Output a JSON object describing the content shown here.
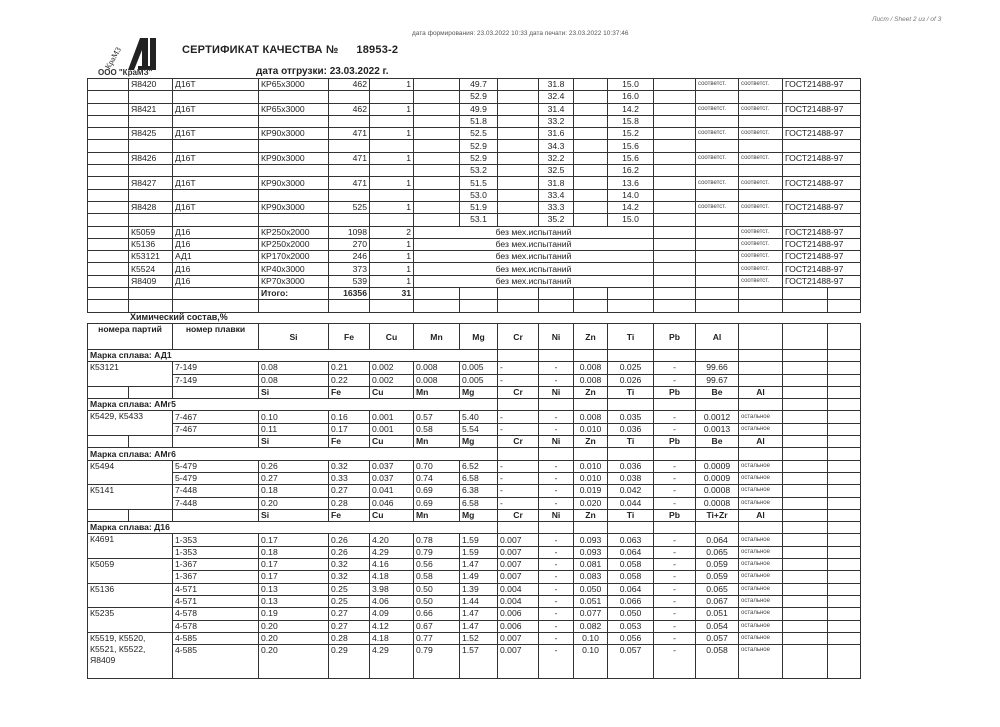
{
  "header": {
    "meta": "дата формирования: 23.03.2022 10:33  дата печати: 23.03.2022 10:37:46",
    "sheet": "Лист / Sheet  2 из / of  3",
    "logo_text": "КраМЗ",
    "company": "ООО \"КраМЗ\"",
    "title": "СЕРТИФИКАТ КАЧЕСТВА №",
    "cert_no": "18953-2",
    "ship_label": "дата отгрузки:",
    "ship_date": "23.03.2022 г."
  },
  "mech": {
    "lots": [
      {
        "party": "Я8420",
        "alloy": "Д16Т",
        "size": "КР65х3000",
        "weight": "462",
        "qty": "1",
        "tests": [
          [
            "49.7",
            "31.8",
            "15.0"
          ],
          [
            "52.9",
            "32.4",
            "16.0"
          ]
        ],
        "c1": "соответст.",
        "c2": "соответст.",
        "std": "ГОСТ21488-97"
      },
      {
        "party": "Я8421",
        "alloy": "Д16Т",
        "size": "КР65х3000",
        "weight": "462",
        "qty": "1",
        "tests": [
          [
            "49.9",
            "31.4",
            "14.2"
          ],
          [
            "51.8",
            "33.2",
            "15.8"
          ]
        ],
        "c1": "соответст.",
        "c2": "соответст.",
        "std": "ГОСТ21488-97"
      },
      {
        "party": "Я8425",
        "alloy": "Д16Т",
        "size": "КР90х3000",
        "weight": "471",
        "qty": "1",
        "tests": [
          [
            "52.5",
            "31.6",
            "15.2"
          ],
          [
            "52.9",
            "34.3",
            "15.6"
          ]
        ],
        "c1": "соответст.",
        "c2": "соответст.",
        "std": "ГОСТ21488-97"
      },
      {
        "party": "Я8426",
        "alloy": "Д16Т",
        "size": "КР90х3000",
        "weight": "471",
        "qty": "1",
        "tests": [
          [
            "52.9",
            "32.2",
            "15.6"
          ],
          [
            "53.2",
            "32.5",
            "16.2"
          ]
        ],
        "c1": "соответст.",
        "c2": "соответст.",
        "std": "ГОСТ21488-97"
      },
      {
        "party": "Я8427",
        "alloy": "Д16Т",
        "size": "КР90х3000",
        "weight": "471",
        "qty": "1",
        "tests": [
          [
            "51.5",
            "31.8",
            "13.6"
          ],
          [
            "53.0",
            "33.4",
            "14.0"
          ]
        ],
        "c1": "соответст.",
        "c2": "соответст.",
        "std": "ГОСТ21488-97"
      },
      {
        "party": "Я8428",
        "alloy": "Д16Т",
        "size": "КР90х3000",
        "weight": "525",
        "qty": "1",
        "tests": [
          [
            "51.9",
            "33.3",
            "14.2"
          ],
          [
            "53.1",
            "35.2",
            "15.0"
          ]
        ],
        "c1": "соответст.",
        "c2": "соответст.",
        "std": "ГОСТ21488-97"
      }
    ],
    "untested": [
      {
        "party": "К5059",
        "alloy": "Д16",
        "size": "КР250х2000",
        "weight": "1098",
        "qty": "2",
        "note": "без мех.испытаний",
        "c2": "соответст.",
        "std": "ГОСТ21488-97"
      },
      {
        "party": "К5136",
        "alloy": "Д16",
        "size": "КР250х2000",
        "weight": "270",
        "qty": "1",
        "note": "без мех.испытаний",
        "c2": "соответст.",
        "std": "ГОСТ21488-97"
      },
      {
        "party": "К53121",
        "alloy": "АД1",
        "size": "КР170х2000",
        "weight": "246",
        "qty": "1",
        "note": "без мех.испытаний",
        "c2": "соответст.",
        "std": "ГОСТ21488-97"
      },
      {
        "party": "К5524",
        "alloy": "Д16",
        "size": "КР40х3000",
        "weight": "373",
        "qty": "1",
        "note": "без мех.испытаний",
        "c2": "соответст.",
        "std": "ГОСТ21488-97"
      },
      {
        "party": "Я8409",
        "alloy": "Д16",
        "size": "КР70х3000",
        "weight": "539",
        "qty": "1",
        "note": "без мех.испытаний",
        "c2": "соответст.",
        "std": "ГОСТ21488-97"
      }
    ],
    "total": {
      "label": "Итого:",
      "weight": "16356",
      "qty": "31"
    }
  },
  "chem": {
    "caption": "Химический состав,%",
    "headers": [
      "номера партий",
      "номер плавки",
      "Si",
      "Fe",
      "Cu",
      "Mn",
      "Mg",
      "Cr",
      "Ni",
      "Zn",
      "Ti",
      "Pb",
      "Al"
    ],
    "groups": [
      {
        "grade": "Марка сплава: АД1",
        "lots": [
          {
            "party": "К53121",
            "rows": [
              [
                "7-149",
                "0.08",
                "0.21",
                "0.002",
                "0.008",
                "0.005",
                "-",
                "-",
                "0.008",
                "0.025",
                "-",
                "99.66",
                ""
              ],
              [
                "7-149",
                "0.08",
                "0.22",
                "0.002",
                "0.008",
                "0.005",
                "-",
                "-",
                "0.008",
                "0.026",
                "-",
                "99.67",
                ""
              ]
            ]
          }
        ]
      },
      {
        "subheader": [
          "Si",
          "Fe",
          "Cu",
          "Mn",
          "Mg",
          "Cr",
          "Ni",
          "Zn",
          "Ti",
          "Pb",
          "Be",
          "Al"
        ],
        "grade": "Марка сплава: АМг5",
        "lots": [
          {
            "party": "К5429, К5433",
            "rows": [
              [
                "7-467",
                "0.10",
                "0.16",
                "0.001",
                "0.57",
                "5.40",
                "-",
                "-",
                "0.008",
                "0.035",
                "-",
                "0.0012",
                "остальное"
              ],
              [
                "7-467",
                "0.11",
                "0.17",
                "0.001",
                "0.58",
                "5.54",
                "-",
                "-",
                "0.010",
                "0.036",
                "-",
                "0.0013",
                "остальное"
              ]
            ]
          }
        ]
      },
      {
        "subheader": [
          "Si",
          "Fe",
          "Cu",
          "Mn",
          "Mg",
          "Cr",
          "Ni",
          "Zn",
          "Ti",
          "Pb",
          "Be",
          "Al"
        ],
        "grade": "Марка сплава: АМг6",
        "lots": [
          {
            "party": "К5494",
            "rows": [
              [
                "5-479",
                "0.26",
                "0.32",
                "0.037",
                "0.70",
                "6.52",
                "-",
                "-",
                "0.010",
                "0.036",
                "-",
                "0.0009",
                "остальное"
              ],
              [
                "5-479",
                "0.27",
                "0.33",
                "0.037",
                "0.74",
                "6.58",
                "-",
                "-",
                "0.010",
                "0.038",
                "-",
                "0.0009",
                "остальное"
              ]
            ]
          },
          {
            "party": "К5141",
            "rows": [
              [
                "7-448",
                "0.18",
                "0.27",
                "0.041",
                "0.69",
                "6.38",
                "-",
                "-",
                "0.019",
                "0.042",
                "-",
                "0.0008",
                "остальное"
              ],
              [
                "7-448",
                "0.20",
                "0.28",
                "0.046",
                "0.69",
                "6.58",
                "-",
                "-",
                "0.020",
                "0.044",
                "-",
                "0.0008",
                "остальное"
              ]
            ]
          }
        ]
      },
      {
        "subheader": [
          "Si",
          "Fe",
          "Cu",
          "Mn",
          "Mg",
          "Cr",
          "Ni",
          "Zn",
          "Ti",
          "Pb",
          "Ti+Zr",
          "Al"
        ],
        "grade": "Марка сплава: Д16",
        "lots": [
          {
            "party": "К4691",
            "rows": [
              [
                "1-353",
                "0.17",
                "0.26",
                "4.20",
                "0.78",
                "1.59",
                "0.007",
                "-",
                "0.093",
                "0.063",
                "-",
                "0.064",
                "остальное"
              ],
              [
                "1-353",
                "0.18",
                "0.26",
                "4.29",
                "0.79",
                "1.59",
                "0.007",
                "-",
                "0.093",
                "0.064",
                "-",
                "0.065",
                "остальное"
              ]
            ]
          },
          {
            "party": "К5059",
            "rows": [
              [
                "1-367",
                "0.17",
                "0.32",
                "4.16",
                "0.56",
                "1.47",
                "0.007",
                "-",
                "0.081",
                "0.058",
                "-",
                "0.059",
                "остальное"
              ],
              [
                "1-367",
                "0.17",
                "0.32",
                "4.18",
                "0.58",
                "1.49",
                "0.007",
                "-",
                "0.083",
                "0.058",
                "-",
                "0.059",
                "остальное"
              ]
            ]
          },
          {
            "party": "К5136",
            "rows": [
              [
                "4-571",
                "0.13",
                "0.25",
                "3.98",
                "0.50",
                "1.39",
                "0.004",
                "-",
                "0.050",
                "0.064",
                "-",
                "0.065",
                "остальное"
              ],
              [
                "4-571",
                "0.13",
                "0.25",
                "4.06",
                "0.50",
                "1.44",
                "0.004",
                "-",
                "0.051",
                "0.066",
                "-",
                "0.067",
                "остальное"
              ]
            ]
          },
          {
            "party": "К5235",
            "rows": [
              [
                "4-578",
                "0.19",
                "0.27",
                "4.09",
                "0.66",
                "1.47",
                "0.006",
                "-",
                "0.077",
                "0.050",
                "-",
                "0.051",
                "остальное"
              ],
              [
                "4-578",
                "0.20",
                "0.27",
                "4.12",
                "0.67",
                "1.47",
                "0.006",
                "-",
                "0.082",
                "0.053",
                "-",
                "0.054",
                "остальное"
              ]
            ]
          },
          {
            "party": "К5519, К5520, К5521, К5522, Я8409",
            "rows": [
              [
                "4-585",
                "0.20",
                "0.28",
                "4.18",
                "0.77",
                "1.52",
                "0.007",
                "-",
                "0.10",
                "0.056",
                "-",
                "0.057",
                "остальное"
              ],
              [
                "4-585",
                "0.20",
                "0.29",
                "4.29",
                "0.79",
                "1.57",
                "0.007",
                "-",
                "0.10",
                "0.057",
                "-",
                "0.058",
                "остальное"
              ]
            ]
          }
        ]
      }
    ]
  }
}
